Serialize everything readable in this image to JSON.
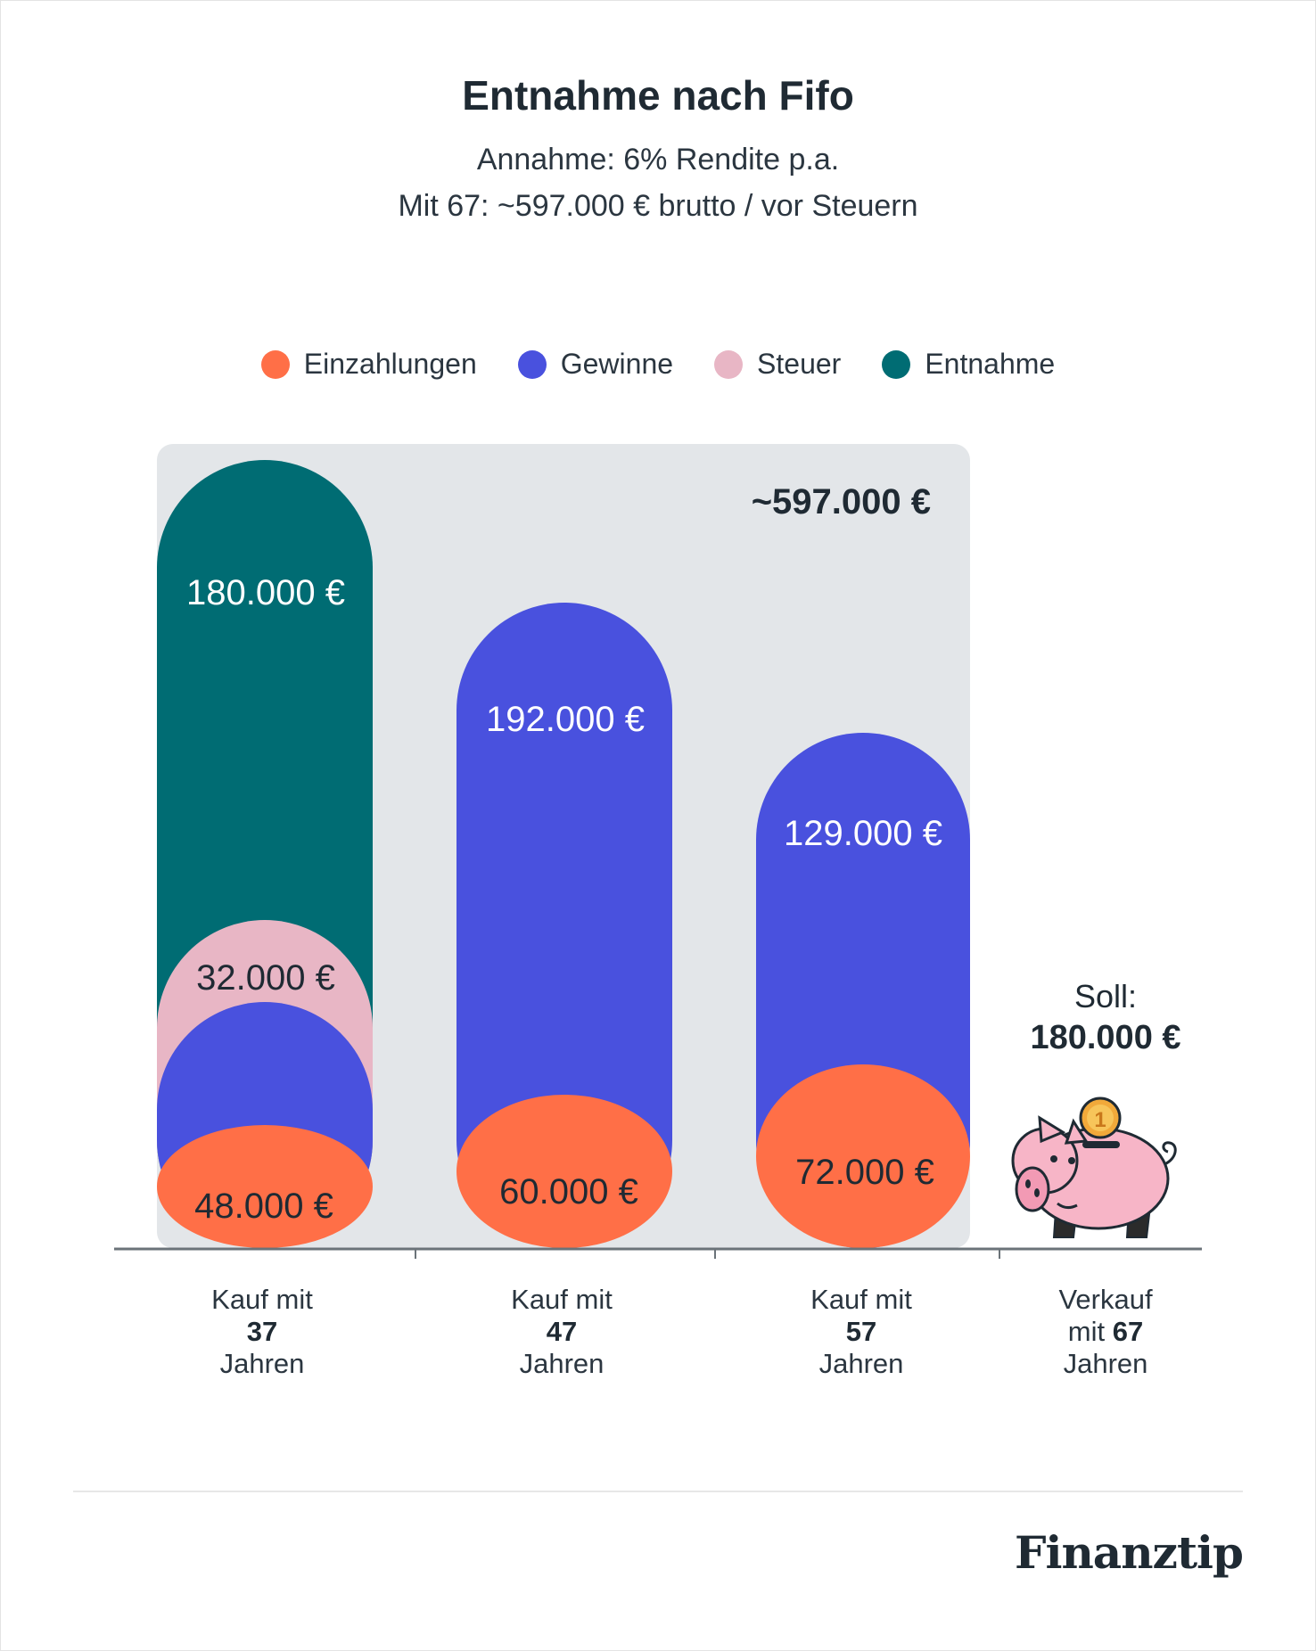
{
  "colors": {
    "einzahlungen": "#ff6f47",
    "gewinne": "#4951de",
    "steuer": "#e8b6c5",
    "entnahme": "#006c73",
    "panel": "#e3e6e9",
    "axis": "#6b7379",
    "text_dark": "#1f2a33"
  },
  "header": {
    "title": "Entnahme nach Fifo",
    "subtitle_1": "Annahme: 6% Rendite p.a.",
    "subtitle_2": "Mit 67: ~597.000 € brutto / vor Steuern"
  },
  "legend": [
    {
      "label": "Einzahlungen",
      "color": "#ff6f47"
    },
    {
      "label": "Gewinne",
      "color": "#4951de"
    },
    {
      "label": "Steuer",
      "color": "#e8b6c5"
    },
    {
      "label": "Entnahme",
      "color": "#006c73"
    }
  ],
  "chart_data": {
    "type": "bar",
    "title": "Entnahme nach Fifo",
    "total_label": "~597.000 €",
    "categories": [
      {
        "line1": "Kauf mit",
        "line2": "37",
        "line3": "Jahren"
      },
      {
        "line1": "Kauf mit",
        "line2": "47",
        "line3": "Jahren"
      },
      {
        "line1": "Kauf mit",
        "line2": "57",
        "line3": "Jahren"
      },
      {
        "line1": "Verkauf",
        "line2a": "mit ",
        "line2": "67",
        "line3": "Jahren"
      }
    ],
    "series": [
      {
        "name": "Einzahlungen",
        "color": "#ff6f47",
        "values": [
          48000,
          60000,
          72000,
          null
        ],
        "labels": [
          "48.000 €",
          "60.000 €",
          "72.000 €",
          ""
        ]
      },
      {
        "name": "Gewinne",
        "color": "#4951de",
        "values": [
          null,
          192000,
          129000,
          null
        ],
        "labels": [
          "",
          "192.000 €",
          "129.000 €",
          ""
        ]
      },
      {
        "name": "Steuer",
        "color": "#e8b6c5",
        "values": [
          32000,
          null,
          null,
          null
        ],
        "labels": [
          "32.000 €",
          "",
          "",
          ""
        ]
      },
      {
        "name": "Entnahme",
        "color": "#006c73",
        "values": [
          180000,
          null,
          null,
          null
        ],
        "labels": [
          "180.000 €",
          "",
          "",
          ""
        ]
      }
    ],
    "target": {
      "label": "Soll:",
      "value_label": "180.000 €",
      "value": 180000
    }
  },
  "brand": {
    "name": "Finanztip"
  }
}
